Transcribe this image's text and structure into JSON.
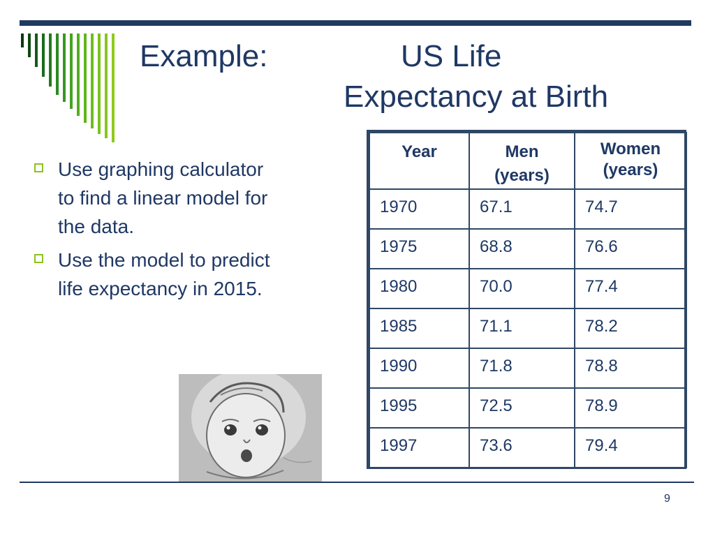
{
  "slide": {
    "title_part1": "Example:",
    "title_part2": "US Life",
    "title_part3": "Expectancy at Birth",
    "page_number": "9"
  },
  "bullets": [
    "Use graphing calculator to find a linear model for the data.",
    "Use the model to predict life expectancy in 2015."
  ],
  "table": {
    "headers": {
      "year": "Year",
      "men_l1": "Men",
      "men_l2": "(years)",
      "women_l1": "Women",
      "women_l2": "(years)"
    },
    "rows": [
      [
        "1970",
        "67.1",
        "74.7"
      ],
      [
        "1975",
        "68.8",
        "76.6"
      ],
      [
        "1980",
        "70.0",
        "77.4"
      ],
      [
        "1985",
        "71.1",
        "78.2"
      ],
      [
        "1990",
        "71.8",
        "78.8"
      ],
      [
        "1995",
        "72.5",
        "78.9"
      ],
      [
        "1997",
        "73.6",
        "79.4"
      ]
    ]
  },
  "colors": {
    "navy": "#1f3a5f",
    "bullet_green": "#8dc21f"
  },
  "images": {
    "photo": "baby-sketch-portrait"
  }
}
